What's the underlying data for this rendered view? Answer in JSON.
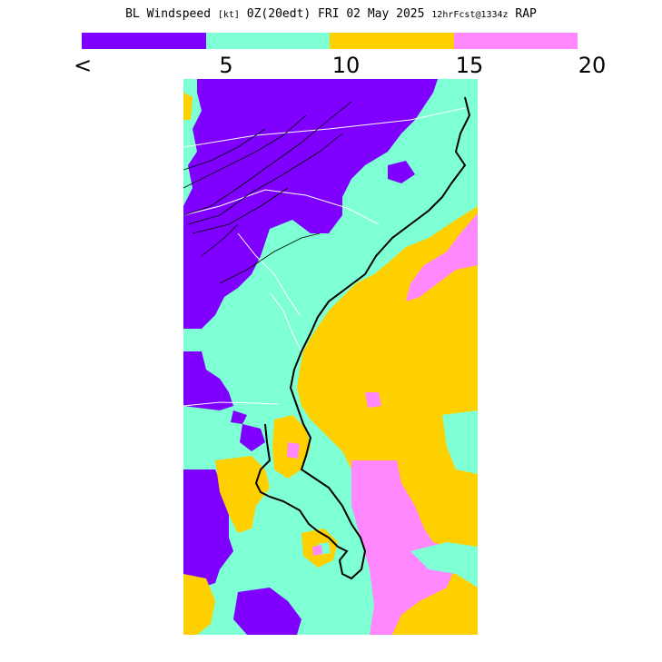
{
  "title": {
    "main": "BL Windspeed",
    "units": "[kt]",
    "valid": "0Z(20edt) FRI 02 May 2025",
    "forecast": "12hrFcst@1334z",
    "model": "RAP"
  },
  "legend": {
    "colors": [
      "#7f00ff",
      "#7fffd4",
      "#ffd000",
      "#ff88ff"
    ],
    "tick_labels": [
      "<",
      "5",
      "10",
      "15",
      "20"
    ]
  },
  "map": {
    "colors": {
      "calm": "#7f00ff",
      "light": "#7fffd4",
      "moderate": "#ffd000",
      "strong": "#ff88ff",
      "coast": "#000000",
      "border": "#ffffff"
    }
  }
}
